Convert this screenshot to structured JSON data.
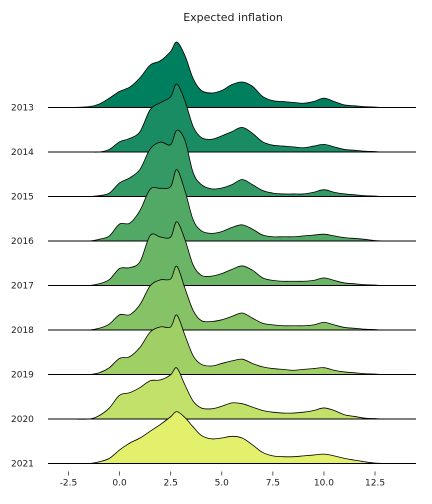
{
  "chart_data": {
    "type": "ridgeline",
    "title": "Expected inflation",
    "xlabel": "",
    "ylabel": "",
    "xlim": [
      -3.6,
      14.7
    ],
    "xticks": [
      -2.5,
      0.0,
      2.5,
      5.0,
      7.5,
      10.0,
      12.5
    ],
    "xtick_labels": [
      "-2.5",
      "0.0",
      "2.5",
      "5.0",
      "7.5",
      "10.0",
      "12.5"
    ],
    "grid": false,
    "legend": "none",
    "density_x": [
      -3.5,
      -2.5,
      -1.5,
      -1.0,
      -0.5,
      0.0,
      0.5,
      1.0,
      1.5,
      2.0,
      2.5,
      2.8,
      3.2,
      3.6,
      4.0,
      4.5,
      5.0,
      5.5,
      6.0,
      6.5,
      7.0,
      7.5,
      8.0,
      8.5,
      9.0,
      9.5,
      10.0,
      10.5,
      11.0,
      11.5,
      12.0,
      12.5,
      13.0,
      14.5
    ],
    "series": [
      {
        "name": "2013",
        "color": "#007f5f",
        "density": [
          0,
          0,
          0.01,
          0.04,
          0.11,
          0.19,
          0.24,
          0.35,
          0.5,
          0.55,
          0.66,
          0.77,
          0.61,
          0.34,
          0.2,
          0.17,
          0.2,
          0.27,
          0.3,
          0.25,
          0.13,
          0.08,
          0.07,
          0.06,
          0.05,
          0.07,
          0.11,
          0.07,
          0.03,
          0.02,
          0.01,
          0.005,
          0,
          0
        ]
      },
      {
        "name": "2014",
        "color": "#1a8c63",
        "density": [
          0,
          0,
          0,
          0,
          0.03,
          0.12,
          0.16,
          0.24,
          0.5,
          0.58,
          0.65,
          0.8,
          0.6,
          0.3,
          0.17,
          0.15,
          0.19,
          0.24,
          0.29,
          0.22,
          0.12,
          0.08,
          0.07,
          0.06,
          0.05,
          0.07,
          0.09,
          0.06,
          0.03,
          0.02,
          0.01,
          0.005,
          0,
          0
        ]
      },
      {
        "name": "2015",
        "color": "#339a65",
        "density": [
          0,
          0,
          0,
          0.01,
          0.04,
          0.16,
          0.22,
          0.32,
          0.56,
          0.64,
          0.61,
          0.78,
          0.66,
          0.28,
          0.14,
          0.09,
          0.1,
          0.14,
          0.2,
          0.14,
          0.07,
          0.04,
          0.03,
          0.03,
          0.03,
          0.05,
          0.08,
          0.05,
          0.03,
          0.02,
          0.01,
          0.005,
          0,
          0
        ]
      },
      {
        "name": "2016",
        "color": "#52a865",
        "density": [
          0,
          0,
          0,
          0.02,
          0.06,
          0.2,
          0.21,
          0.36,
          0.61,
          0.62,
          0.64,
          0.84,
          0.59,
          0.25,
          0.12,
          0.09,
          0.11,
          0.16,
          0.19,
          0.14,
          0.07,
          0.05,
          0.05,
          0.05,
          0.06,
          0.07,
          0.08,
          0.06,
          0.04,
          0.03,
          0.02,
          0.005,
          0,
          0
        ]
      },
      {
        "name": "2017",
        "color": "#6ab566",
        "density": [
          0,
          0,
          0,
          0.02,
          0.07,
          0.2,
          0.21,
          0.28,
          0.59,
          0.57,
          0.57,
          0.75,
          0.54,
          0.24,
          0.12,
          0.11,
          0.14,
          0.19,
          0.23,
          0.18,
          0.09,
          0.06,
          0.05,
          0.05,
          0.05,
          0.06,
          0.09,
          0.06,
          0.03,
          0.02,
          0.01,
          0.005,
          0,
          0
        ]
      },
      {
        "name": "2018",
        "color": "#86c266",
        "density": [
          0,
          0,
          0,
          0.02,
          0.07,
          0.18,
          0.18,
          0.3,
          0.52,
          0.59,
          0.6,
          0.75,
          0.49,
          0.23,
          0.11,
          0.1,
          0.12,
          0.16,
          0.2,
          0.14,
          0.08,
          0.06,
          0.05,
          0.05,
          0.05,
          0.06,
          0.09,
          0.06,
          0.03,
          0.02,
          0.01,
          0.005,
          0,
          0
        ]
      },
      {
        "name": "2019",
        "color": "#a0cf66",
        "density": [
          0,
          0,
          0,
          0.02,
          0.08,
          0.19,
          0.21,
          0.32,
          0.5,
          0.56,
          0.56,
          0.7,
          0.46,
          0.22,
          0.12,
          0.1,
          0.13,
          0.16,
          0.18,
          0.13,
          0.09,
          0.07,
          0.06,
          0.05,
          0.06,
          0.07,
          0.08,
          0.05,
          0.03,
          0.02,
          0.01,
          0.005,
          0,
          0
        ]
      },
      {
        "name": "2020",
        "color": "#c2e16a",
        "density": [
          0,
          0,
          0,
          0.04,
          0.13,
          0.28,
          0.31,
          0.37,
          0.45,
          0.46,
          0.52,
          0.6,
          0.4,
          0.21,
          0.13,
          0.12,
          0.15,
          0.19,
          0.18,
          0.14,
          0.1,
          0.08,
          0.07,
          0.07,
          0.08,
          0.1,
          0.13,
          0.1,
          0.05,
          0.03,
          0.01,
          0.005,
          0,
          0
        ]
      },
      {
        "name": "2021",
        "color": "#e3f06b",
        "density": [
          0,
          0,
          0,
          0.02,
          0.06,
          0.16,
          0.24,
          0.3,
          0.38,
          0.46,
          0.55,
          0.61,
          0.54,
          0.43,
          0.33,
          0.29,
          0.3,
          0.32,
          0.3,
          0.22,
          0.13,
          0.09,
          0.08,
          0.08,
          0.09,
          0.1,
          0.11,
          0.09,
          0.06,
          0.04,
          0.02,
          0.005,
          0,
          0
        ]
      }
    ]
  }
}
